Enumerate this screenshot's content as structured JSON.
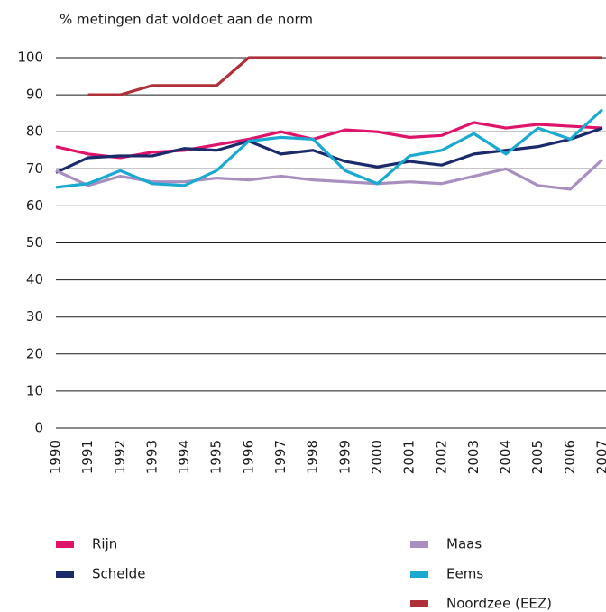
{
  "chart_data": {
    "type": "line",
    "title": "% metingen dat voldoet aan de norm",
    "categories": [
      "1990",
      "1991",
      "1992",
      "1993",
      "1994",
      "1995",
      "1996",
      "1997",
      "1998",
      "1999",
      "2000",
      "2001",
      "2002",
      "2003",
      "2004",
      "2005",
      "2006",
      "2007"
    ],
    "series": [
      {
        "name": "Rijn",
        "color": "#e0136b",
        "values": [
          76,
          74,
          73,
          74.5,
          75,
          76.5,
          78,
          80,
          78,
          80.5,
          80,
          78.5,
          79,
          82.5,
          81,
          82,
          81.5,
          81
        ]
      },
      {
        "name": "Schelde",
        "color": "#1b2a6b",
        "values": [
          69,
          73,
          73.5,
          73.5,
          75.5,
          75,
          77.5,
          74,
          75,
          72,
          70.5,
          72,
          71,
          74,
          75,
          76,
          78,
          81
        ]
      },
      {
        "name": "Maas",
        "color": "#a98fc0",
        "values": [
          69.5,
          65.5,
          68,
          66.5,
          66.5,
          67.5,
          67,
          68,
          67,
          66.5,
          66,
          66.5,
          66,
          68,
          70,
          65.5,
          64.5,
          72.5
        ]
      },
      {
        "name": "Eems",
        "color": "#1aa9d0",
        "values": [
          65,
          66,
          69.5,
          66,
          65.5,
          69.5,
          77.5,
          78.5,
          78,
          69.5,
          66,
          73.5,
          75,
          79.5,
          74,
          81,
          78,
          86
        ]
      },
      {
        "name": "Noordzee (EEZ)",
        "color": "#b0303a",
        "values": [
          null,
          90,
          90,
          92.5,
          92.5,
          92.5,
          100,
          100,
          100,
          100,
          100,
          100,
          100,
          100,
          100,
          100,
          100,
          100
        ]
      }
    ],
    "ylim": [
      0,
      100
    ],
    "yticks": [
      0,
      10,
      20,
      30,
      40,
      50,
      60,
      70,
      80,
      90,
      100
    ],
    "grid": true
  }
}
